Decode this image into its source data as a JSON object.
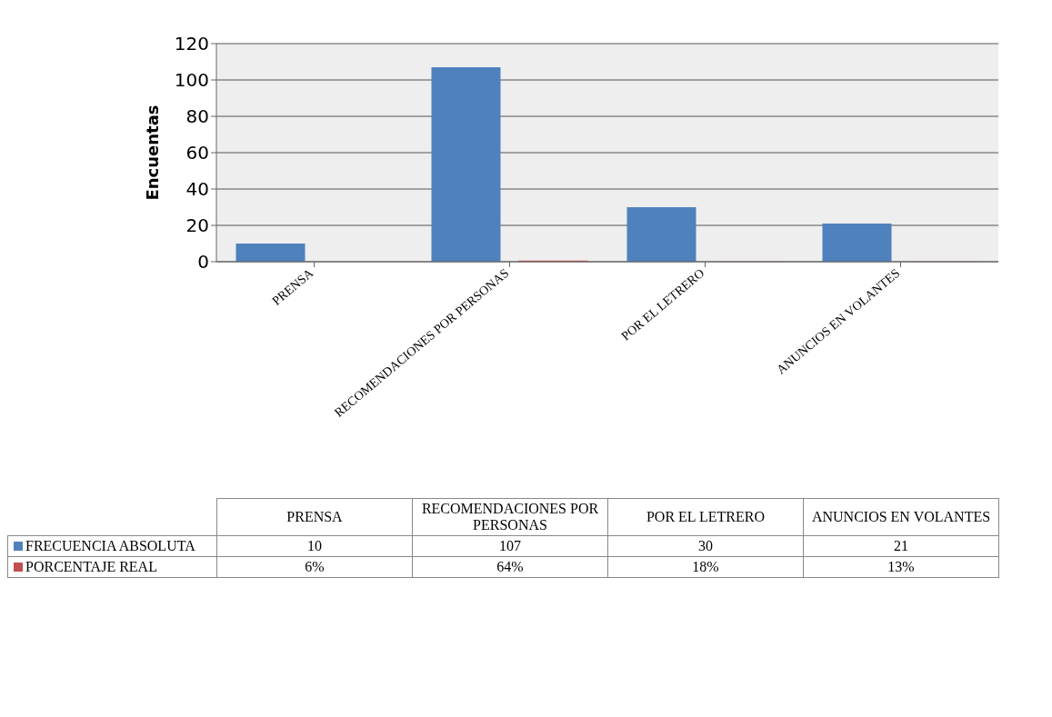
{
  "chart_data": {
    "type": "bar",
    "ylabel": "Encuentas",
    "categories": [
      "PRENSA",
      "RECOMENDACIONES POR PERSONAS",
      "POR EL LETRERO",
      "ANUNCIOS EN VOLANTES"
    ],
    "series": [
      {
        "name": "FRECUENCIA ABSOLUTA",
        "color": "#4f81bd",
        "values": [
          10,
          107,
          30,
          21
        ],
        "value_labels": [
          "10",
          "107",
          "30",
          "21"
        ]
      },
      {
        "name": "PORCENTAJE REAL",
        "color": "#c0504d",
        "values": [
          0.06,
          0.64,
          0.18,
          0.13
        ],
        "value_labels": [
          "6%",
          "64%",
          "18%",
          "13%"
        ]
      }
    ],
    "ylim": [
      0,
      120
    ],
    "yticks": [
      0,
      20,
      40,
      60,
      80,
      100,
      120
    ],
    "grid": "y",
    "legend": "bottom left"
  }
}
